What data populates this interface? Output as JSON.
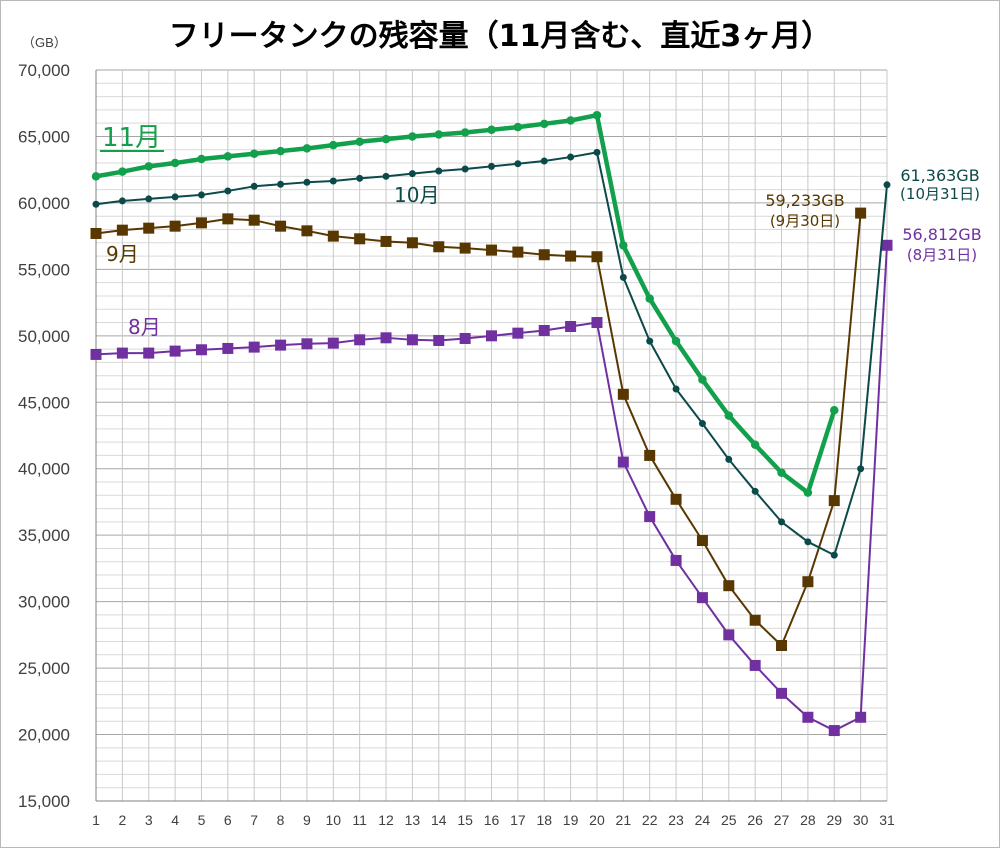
{
  "chart_data": {
    "type": "line",
    "title": "フリータンクの残容量（11月含む、直近3ヶ月）",
    "unit_label": "（GB）",
    "ylim": [
      15000,
      70000
    ],
    "y_ticks": [
      "15,000",
      "20,000",
      "25,000",
      "30,000",
      "35,000",
      "40,000",
      "45,000",
      "50,000",
      "55,000",
      "60,000",
      "65,000",
      "70,000"
    ],
    "x": [
      "1",
      "2",
      "3",
      "4",
      "5",
      "6",
      "7",
      "8",
      "9",
      "10",
      "11",
      "12",
      "13",
      "14",
      "15",
      "16",
      "17",
      "18",
      "19",
      "20",
      "21",
      "22",
      "23",
      "24",
      "25",
      "26",
      "27",
      "28",
      "29",
      "30",
      "31"
    ],
    "grid": true,
    "series": [
      {
        "name": "8月",
        "color": "#7030a0",
        "marker": "square",
        "values": [
          48600,
          48700,
          48700,
          48850,
          48950,
          49050,
          49150,
          49300,
          49400,
          49450,
          49700,
          49850,
          49700,
          49650,
          49800,
          50000,
          50200,
          50400,
          50700,
          51000,
          40500,
          36400,
          33100,
          30300,
          27500,
          25200,
          23100,
          21300,
          20300,
          21300,
          56812
        ],
        "end_label": "56,812GB",
        "end_note": "(8月31日)"
      },
      {
        "name": "9月",
        "color": "#583800",
        "marker": "square",
        "values": [
          57700,
          57950,
          58100,
          58250,
          58500,
          58800,
          58700,
          58250,
          57900,
          57500,
          57300,
          57100,
          57000,
          56700,
          56600,
          56450,
          56300,
          56100,
          56000,
          55950,
          45600,
          41000,
          37700,
          34600,
          31200,
          28600,
          26700,
          31500,
          37600,
          59233,
          null
        ],
        "end_label": "59,233GB",
        "end_note": "(9月30日)"
      },
      {
        "name": "10月",
        "color": "#0c4a4a",
        "marker": "circle",
        "values": [
          59900,
          60150,
          60300,
          60450,
          60600,
          60900,
          61250,
          61400,
          61550,
          61650,
          61850,
          62000,
          62200,
          62400,
          62550,
          62750,
          62950,
          63150,
          63450,
          63800,
          54400,
          49600,
          46000,
          43400,
          40700,
          38300,
          36000,
          34500,
          33500,
          40000,
          61363
        ],
        "end_label": "61,363GB",
        "end_note": "(10月31日)"
      },
      {
        "name": "11月",
        "color": "#12a04c",
        "marker": "circle",
        "values": [
          62000,
          62350,
          62750,
          63000,
          63300,
          63500,
          63700,
          63900,
          64100,
          64350,
          64600,
          64800,
          65000,
          65150,
          65300,
          65500,
          65700,
          65950,
          66200,
          66600,
          56800,
          52800,
          49600,
          46700,
          44000,
          41800,
          39700,
          38200,
          44400,
          null,
          null
        ]
      }
    ]
  }
}
